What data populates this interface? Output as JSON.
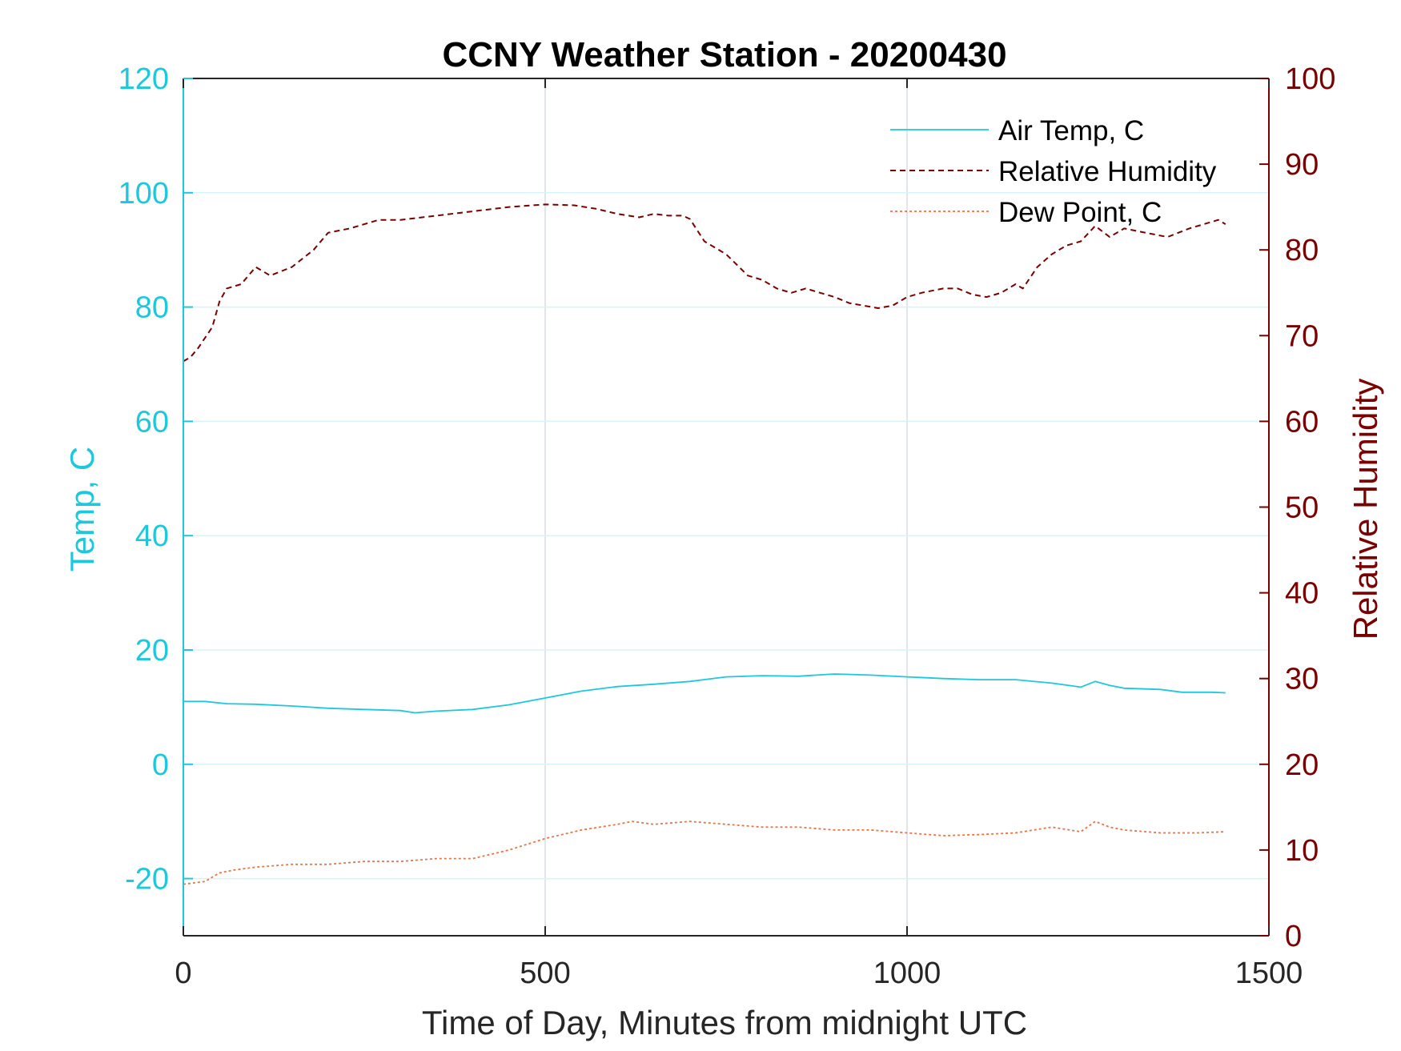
{
  "chart_data": {
    "type": "line",
    "title": "CCNY Weather Station - 20200430",
    "xlabel": "Time of Day, Minutes from midnight UTC",
    "ylabel_left": "Temp, C",
    "ylabel_right": "Relative Humidity",
    "xlim": [
      0,
      1500
    ],
    "ylim_left": [
      -30,
      120
    ],
    "ylim_right": [
      0,
      100
    ],
    "x_ticks": [
      "0",
      "500",
      "1000",
      "1500"
    ],
    "y_left_ticks": [
      "-20",
      "0",
      "20",
      "40",
      "60",
      "80",
      "100",
      "120"
    ],
    "y_right_ticks": [
      "0",
      "10",
      "20",
      "30",
      "40",
      "50",
      "60",
      "70",
      "80",
      "90",
      "100"
    ],
    "grid": true,
    "legend_position": "top-right",
    "colors": {
      "left_axis": "#1ec8dc",
      "right_axis": "#7a0000",
      "air_temp": "#1ec8dc",
      "humidity": "#7a0000",
      "dew_point": "#e8744a"
    },
    "series": [
      {
        "name": "Air Temp, C",
        "axis": "left",
        "style": "solid",
        "x": [
          0,
          30,
          60,
          100,
          150,
          200,
          250,
          300,
          320,
          350,
          400,
          450,
          500,
          550,
          600,
          650,
          700,
          750,
          800,
          850,
          900,
          950,
          1000,
          1050,
          1100,
          1150,
          1200,
          1240,
          1260,
          1280,
          1300,
          1350,
          1380,
          1420,
          1440
        ],
        "values": [
          11,
          11,
          10.6,
          10.5,
          10.2,
          9.8,
          9.6,
          9.4,
          9,
          9.3,
          9.6,
          10.4,
          11.6,
          12.8,
          13.6,
          14,
          14.5,
          15.3,
          15.5,
          15.4,
          15.8,
          15.6,
          15.3,
          15,
          14.8,
          14.8,
          14.2,
          13.5,
          14.5,
          13.8,
          13.3,
          13.1,
          12.6,
          12.6,
          12.5
        ]
      },
      {
        "name": "Relative Humidity",
        "axis": "right",
        "style": "dashed",
        "x": [
          0,
          10,
          20,
          40,
          50,
          60,
          80,
          100,
          120,
          150,
          180,
          200,
          230,
          250,
          270,
          300,
          350,
          400,
          450,
          500,
          540,
          570,
          600,
          630,
          650,
          670,
          690,
          700,
          720,
          750,
          780,
          800,
          820,
          840,
          860,
          880,
          900,
          920,
          940,
          960,
          980,
          1000,
          1020,
          1050,
          1070,
          1090,
          1110,
          1130,
          1150,
          1160,
          1180,
          1200,
          1220,
          1240,
          1260,
          1280,
          1300,
          1330,
          1360,
          1390,
          1410,
          1430,
          1440
        ],
        "values": [
          67,
          67.5,
          68.5,
          71,
          74,
          75.5,
          76,
          78,
          77,
          78,
          80,
          82,
          82.5,
          83,
          83.5,
          83.5,
          84,
          84.5,
          85,
          85.3,
          85.2,
          84.8,
          84.2,
          83.8,
          84.2,
          84,
          84,
          83.6,
          81,
          79.5,
          77,
          76.5,
          75.5,
          75,
          75.5,
          75,
          74.5,
          73.8,
          73.5,
          73.2,
          73.5,
          74.5,
          75,
          75.5,
          75.5,
          74.8,
          74.5,
          75,
          76,
          75.5,
          78,
          79.5,
          80.5,
          81,
          82.8,
          81.5,
          82.5,
          82,
          81.5,
          82.5,
          83,
          83.5,
          83
        ]
      },
      {
        "name": "Dew Point, C",
        "axis": "left",
        "style": "dotted",
        "x": [
          0,
          30,
          50,
          70,
          100,
          150,
          200,
          250,
          300,
          350,
          400,
          450,
          500,
          550,
          600,
          620,
          650,
          700,
          750,
          800,
          850,
          900,
          950,
          1000,
          1050,
          1100,
          1150,
          1200,
          1240,
          1260,
          1280,
          1300,
          1350,
          1400,
          1440
        ],
        "values": [
          -21,
          -20.5,
          -19,
          -18.5,
          -18,
          -17.5,
          -17.5,
          -17,
          -17,
          -16.5,
          -16.5,
          -15,
          -13,
          -11.5,
          -10.5,
          -10,
          -10.5,
          -10,
          -10.5,
          -11,
          -11,
          -11.5,
          -11.5,
          -12,
          -12.5,
          -12.3,
          -12,
          -11,
          -11.8,
          -10,
          -11,
          -11.5,
          -12,
          -12,
          -11.8
        ]
      }
    ]
  }
}
